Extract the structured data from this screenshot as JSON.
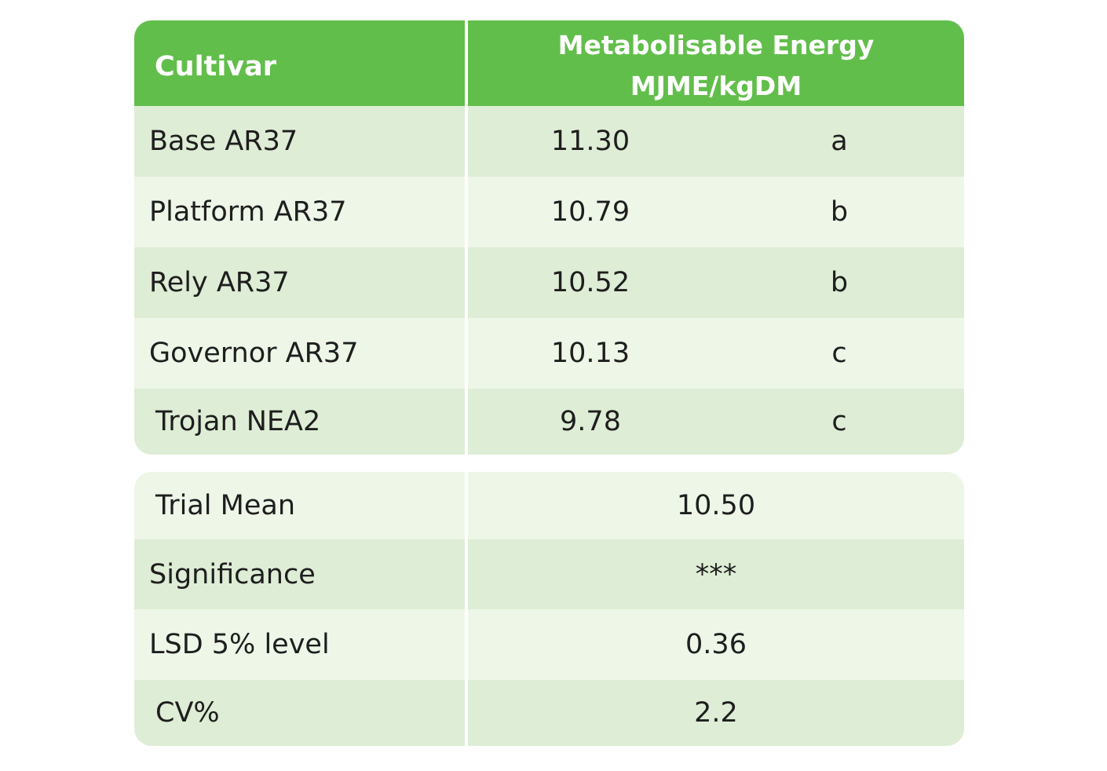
{
  "header": {
    "cultivar_label": "Cultivar",
    "energy_line1": "Metabolisable Energy",
    "energy_line2": "MJME/kgDM"
  },
  "cultivars": [
    {
      "name": "Base AR37",
      "value": "11.30",
      "group": "a"
    },
    {
      "name": "Platform AR37",
      "value": "10.79",
      "group": "b"
    },
    {
      "name": "Rely AR37",
      "value": "10.52",
      "group": "b"
    },
    {
      "name": "Governor AR37",
      "value": "10.13",
      "group": "c"
    },
    {
      "name": "Trojan NEA2",
      "value": "9.78",
      "group": "c"
    }
  ],
  "stats": [
    {
      "label": "Trial Mean",
      "value": "10.50"
    },
    {
      "label": "Significance",
      "value": "***"
    },
    {
      "label": "LSD 5% level",
      "value": "0.36"
    },
    {
      "label": "CV%",
      "value": "2.2"
    }
  ],
  "colors": {
    "header_green": "#62be4b",
    "row_dark": "#deedd5",
    "row_light": "#edf6e7"
  }
}
